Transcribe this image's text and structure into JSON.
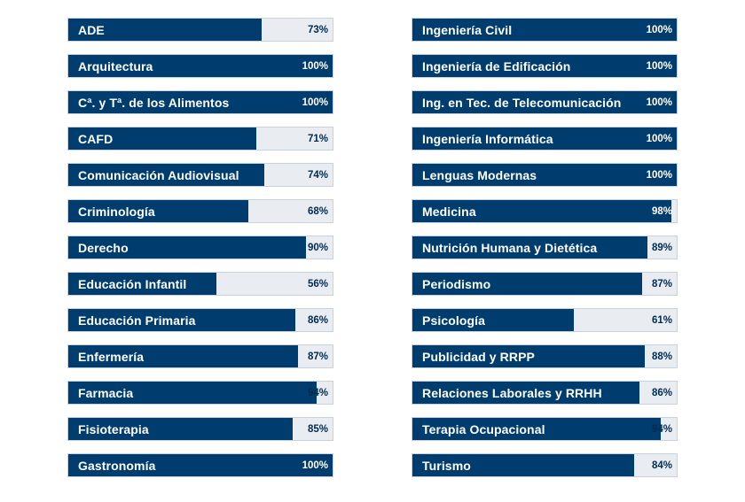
{
  "colors": {
    "fill": "#003d6f",
    "track": "#e9edf1",
    "border": "#c9d2dc"
  },
  "chart_data": {
    "type": "bar",
    "title": "",
    "xlabel": "",
    "ylabel": "",
    "ylim": [
      0,
      100
    ],
    "unit": "%",
    "columns": [
      {
        "categories": [
          "ADE",
          "Arquitectura",
          "Cª. y Tª. de los Alimentos",
          "CAFD",
          "Comunicación Audiovisual",
          "Criminología",
          "Derecho",
          "Educación Infantil",
          "Educación Primaria",
          "Enfermería",
          "Farmacia",
          "Fisioterapia",
          "Gastronomía"
        ],
        "values": [
          73,
          100,
          100,
          71,
          74,
          68,
          90,
          56,
          86,
          87,
          94,
          85,
          100
        ]
      },
      {
        "categories": [
          "Ingeniería Civil",
          "Ingeniería de Edificación",
          "Ing. en Tec. de Telecomunicación",
          "Ingeniería Informática",
          "Lenguas Modernas",
          "Medicina",
          "Nutrición Humana y Dietética",
          "Periodismo",
          "Psicología",
          "Publicidad y RRPP",
          "Relaciones Laborales y RRHH",
          "Terapia Ocupacional",
          "Turismo"
        ],
        "values": [
          100,
          100,
          100,
          100,
          100,
          98,
          89,
          87,
          61,
          88,
          86,
          94,
          84
        ]
      }
    ]
  }
}
